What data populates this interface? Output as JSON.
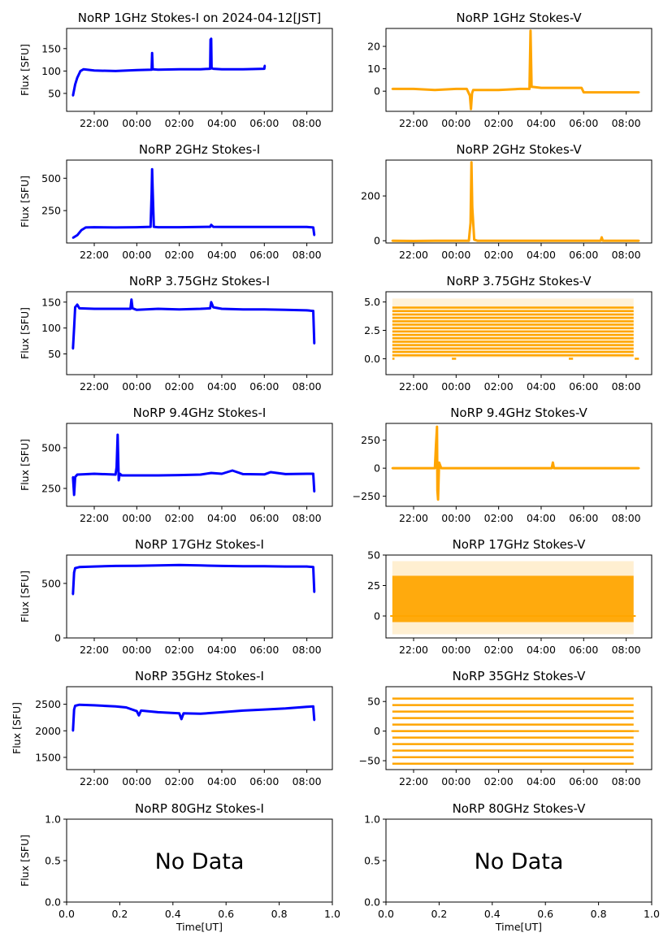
{
  "figure": {
    "xlabel": "Time[UT]",
    "ylabel": "Flux [SFU]",
    "nodata_text": "No Data"
  },
  "colors": {
    "stokes_i": "#0000ff",
    "stokes_v": "#ffa500",
    "frame": "#000000"
  },
  "chart_data": [
    {
      "id": "p1i",
      "type": "line",
      "title": "NoRP 1GHz Stokes-I on 2024-04-12[JST]",
      "ylabel": "Flux [SFU]",
      "xlabel": "",
      "color": "#0000ff",
      "xlim": [
        20.7,
        33.2
      ],
      "ylim": [
        10,
        195
      ],
      "yticks": [
        50,
        100,
        150
      ],
      "xtick_labels": [
        "22:00",
        "00:00",
        "02:00",
        "04:00",
        "06:00",
        "08:00"
      ],
      "xticks": [
        22,
        24,
        26,
        28,
        30,
        32
      ],
      "series": [
        {
          "name": "Stokes-I",
          "x": [
            21.0,
            21.1,
            21.2,
            21.35,
            21.5,
            22.0,
            23.0,
            24.0,
            24.7,
            24.72,
            24.75,
            25.0,
            26.0,
            27.0,
            27.45,
            27.47,
            27.5,
            27.52,
            27.6,
            28.0,
            29.0,
            30.0,
            30.02
          ],
          "y": [
            45,
            70,
            85,
            100,
            104,
            101,
            100,
            102,
            103,
            140,
            104,
            103,
            104,
            104,
            105,
            170,
            172,
            106,
            105,
            104,
            104,
            105,
            112
          ]
        }
      ]
    },
    {
      "id": "p1v",
      "type": "line",
      "title": "NoRP 1GHz Stokes-V",
      "ylabel": "",
      "xlabel": "",
      "color": "#ffa500",
      "xlim": [
        20.7,
        33.2
      ],
      "ylim": [
        -9,
        28
      ],
      "yticks": [
        0,
        10,
        20
      ],
      "xtick_labels": [
        "22:00",
        "00:00",
        "02:00",
        "04:00",
        "06:00",
        "08:00"
      ],
      "xticks": [
        22,
        24,
        26,
        28,
        30,
        32
      ],
      "series": [
        {
          "name": "Stokes-V",
          "x": [
            21.0,
            22.0,
            23.0,
            24.0,
            24.5,
            24.65,
            24.7,
            24.75,
            24.8,
            25.5,
            26.0,
            27.0,
            27.45,
            27.5,
            27.55,
            28.0,
            29.0,
            29.9,
            30.0,
            31.0,
            32.0,
            32.6
          ],
          "y": [
            1,
            1,
            0.5,
            1,
            1,
            -2,
            -8,
            -1,
            0.5,
            0.5,
            0.5,
            1,
            1,
            27,
            2,
            1.5,
            1.5,
            1.5,
            -0.5,
            -0.5,
            -0.5,
            -0.5
          ]
        }
      ]
    },
    {
      "id": "p2i",
      "type": "line",
      "title": "NoRP 2GHz Stokes-I",
      "ylabel": "Flux [SFU]",
      "xlabel": "",
      "color": "#0000ff",
      "xlim": [
        20.7,
        33.2
      ],
      "ylim": [
        0,
        640
      ],
      "yticks": [
        250,
        500
      ],
      "xtick_labels": [
        "22:00",
        "00:00",
        "02:00",
        "04:00",
        "06:00",
        "08:00"
      ],
      "xticks": [
        22,
        24,
        26,
        28,
        30,
        32
      ],
      "series": [
        {
          "name": "Stokes-I",
          "x": [
            21.0,
            21.2,
            21.4,
            21.6,
            22.0,
            23.0,
            24.0,
            24.65,
            24.7,
            24.72,
            24.75,
            24.8,
            25.0,
            26.0,
            27.0,
            27.45,
            27.5,
            27.6,
            28.0,
            29.0,
            30.0,
            31.0,
            32.0,
            32.3,
            32.35
          ],
          "y": [
            40,
            60,
            100,
            120,
            122,
            120,
            122,
            125,
            380,
            570,
            410,
            125,
            122,
            122,
            124,
            125,
            140,
            125,
            124,
            124,
            124,
            124,
            124,
            120,
            60
          ]
        }
      ]
    },
    {
      "id": "p2v",
      "type": "line",
      "title": "NoRP 2GHz Stokes-V",
      "ylabel": "",
      "xlabel": "",
      "color": "#ffa500",
      "xlim": [
        20.7,
        33.2
      ],
      "ylim": [
        -10,
        360
      ],
      "yticks": [
        0,
        200
      ],
      "xtick_labels": [
        "22:00",
        "00:00",
        "02:00",
        "04:00",
        "06:00",
        "08:00"
      ],
      "xticks": [
        22,
        24,
        26,
        28,
        30,
        32
      ],
      "series": [
        {
          "name": "Stokes-V",
          "x": [
            21.0,
            22.0,
            23.0,
            24.0,
            24.6,
            24.68,
            24.72,
            24.76,
            24.85,
            25.0,
            26.0,
            27.0,
            28.0,
            29.0,
            30.0,
            30.8,
            30.85,
            30.9,
            31.5,
            32.0,
            32.6
          ],
          "y": [
            0,
            -1,
            0,
            0,
            0,
            80,
            350,
            150,
            5,
            0,
            0,
            0,
            0,
            0,
            0,
            0,
            15,
            0,
            0,
            0,
            0
          ]
        }
      ]
    },
    {
      "id": "p3i",
      "type": "line",
      "title": "NoRP 3.75GHz Stokes-I",
      "ylabel": "Flux [SFU]",
      "xlabel": "",
      "color": "#0000ff",
      "xlim": [
        20.7,
        33.2
      ],
      "ylim": [
        10,
        170
      ],
      "yticks": [
        50,
        100,
        150
      ],
      "xtick_labels": [
        "22:00",
        "00:00",
        "02:00",
        "04:00",
        "06:00",
        "08:00"
      ],
      "xticks": [
        22,
        24,
        26,
        28,
        30,
        32
      ],
      "series": [
        {
          "name": "Stokes-I",
          "x": [
            21.0,
            21.05,
            21.1,
            21.2,
            21.3,
            22.0,
            23.0,
            23.7,
            23.75,
            23.8,
            24.0,
            25.0,
            26.0,
            27.0,
            27.45,
            27.5,
            27.6,
            28.0,
            29.0,
            30.0,
            31.0,
            32.0,
            32.3,
            32.35
          ],
          "y": [
            60,
            100,
            140,
            145,
            138,
            137,
            137,
            137,
            155,
            138,
            135,
            137,
            136,
            137,
            138,
            150,
            140,
            137,
            136,
            136,
            135,
            134,
            133,
            70
          ]
        }
      ]
    },
    {
      "id": "p3v",
      "type": "scatter",
      "title": "NoRP 3.75GHz Stokes-V",
      "ylabel": "",
      "xlabel": "",
      "color": "#ffa500",
      "xlim": [
        20.7,
        33.2
      ],
      "ylim": [
        -1.4,
        5.9
      ],
      "yticks": [
        0.0,
        2.5,
        5.0
      ],
      "ytick_labels": [
        "0.0",
        "2.5",
        "5.0"
      ],
      "xtick_labels": [
        "22:00",
        "00:00",
        "02:00",
        "04:00",
        "06:00",
        "08:00"
      ],
      "xticks": [
        22,
        24,
        26,
        28,
        30,
        32
      ],
      "levels": [
        0.3,
        0.6,
        0.9,
        1.2,
        1.5,
        1.8,
        2.1,
        2.4,
        2.7,
        3.0,
        3.3,
        3.6,
        3.9,
        4.2,
        4.5
      ],
      "x_range": [
        21.0,
        32.35
      ],
      "series": [
        {
          "name": "Stokes-V",
          "x": [
            21.0,
            32.35
          ],
          "y": [
            0.0,
            4.5
          ]
        }
      ]
    },
    {
      "id": "p4i",
      "type": "line",
      "title": "NoRP 9.4GHz Stokes-I",
      "ylabel": "Flux [SFU]",
      "xlabel": "",
      "color": "#0000ff",
      "xlim": [
        20.7,
        33.2
      ],
      "ylim": [
        140,
        650
      ],
      "yticks": [
        250,
        500
      ],
      "xtick_labels": [
        "22:00",
        "00:00",
        "02:00",
        "04:00",
        "06:00",
        "08:00"
      ],
      "xticks": [
        22,
        24,
        26,
        28,
        30,
        32
      ],
      "series": [
        {
          "name": "Stokes-I",
          "x": [
            21.0,
            21.05,
            21.1,
            21.2,
            22.0,
            23.0,
            23.05,
            23.1,
            23.15,
            23.2,
            23.3,
            24.0,
            25.0,
            26.0,
            27.0,
            27.5,
            28.0,
            28.5,
            29.0,
            30.0,
            30.3,
            31.0,
            32.0,
            32.3,
            32.35
          ],
          "y": [
            320,
            210,
            320,
            335,
            340,
            335,
            380,
            580,
            300,
            340,
            330,
            330,
            330,
            332,
            335,
            345,
            340,
            360,
            338,
            336,
            350,
            338,
            340,
            340,
            230
          ]
        }
      ]
    },
    {
      "id": "p4v",
      "type": "line",
      "title": "NoRP 9.4GHz Stokes-V",
      "ylabel": "",
      "xlabel": "",
      "color": "#ffa500",
      "xlim": [
        20.7,
        33.2
      ],
      "ylim": [
        -340,
        400
      ],
      "yticks": [
        -250,
        0,
        250
      ],
      "ytick_labels": [
        "−250",
        "0",
        "250"
      ],
      "xtick_labels": [
        "22:00",
        "00:00",
        "02:00",
        "04:00",
        "06:00",
        "08:00"
      ],
      "xticks": [
        22,
        24,
        26,
        28,
        30,
        32
      ],
      "series": [
        {
          "name": "Stokes-V",
          "x": [
            21.0,
            22.0,
            23.0,
            23.05,
            23.1,
            23.12,
            23.15,
            23.2,
            23.3,
            24.0,
            25.0,
            26.0,
            27.0,
            28.0,
            28.5,
            28.55,
            28.6,
            29.0,
            30.0,
            31.0,
            32.0,
            32.6
          ],
          "y": [
            0,
            0,
            0,
            200,
            370,
            -200,
            -280,
            50,
            0,
            0,
            0,
            0,
            0,
            0,
            0,
            50,
            0,
            0,
            0,
            0,
            0,
            0
          ]
        }
      ]
    },
    {
      "id": "p5i",
      "type": "line",
      "title": "NoRP 17GHz Stokes-I",
      "ylabel": "Flux [SFU]",
      "xlabel": "",
      "color": "#0000ff",
      "xlim": [
        20.7,
        33.2
      ],
      "ylim": [
        0,
        760
      ],
      "yticks": [
        0,
        500
      ],
      "xtick_labels": [
        "22:00",
        "00:00",
        "02:00",
        "04:00",
        "06:00",
        "08:00"
      ],
      "xticks": [
        22,
        24,
        26,
        28,
        30,
        32
      ],
      "series": [
        {
          "name": "Stokes-I",
          "x": [
            21.0,
            21.05,
            21.1,
            21.3,
            22.0,
            23.0,
            24.0,
            25.0,
            26.0,
            27.0,
            28.0,
            29.0,
            30.0,
            31.0,
            32.0,
            32.3,
            32.35
          ],
          "y": [
            400,
            600,
            640,
            650,
            655,
            660,
            662,
            665,
            668,
            665,
            660,
            658,
            658,
            655,
            655,
            650,
            420
          ]
        }
      ]
    },
    {
      "id": "p5v",
      "type": "scatter",
      "title": "NoRP 17GHz Stokes-V",
      "ylabel": "",
      "xlabel": "",
      "color": "#ffa500",
      "xlim": [
        20.7,
        33.2
      ],
      "ylim": [
        -18,
        50
      ],
      "yticks": [
        0,
        25,
        50
      ],
      "xtick_labels": [
        "22:00",
        "00:00",
        "02:00",
        "04:00",
        "06:00",
        "08:00"
      ],
      "xticks": [
        22,
        24,
        26,
        28,
        30,
        32
      ],
      "band": [
        -5,
        33
      ],
      "series": [
        {
          "name": "Stokes-V",
          "x": [
            21.0,
            32.35
          ],
          "y": [
            -5,
            33
          ]
        }
      ]
    },
    {
      "id": "p6i",
      "type": "line",
      "title": "NoRP 35GHz Stokes-I",
      "ylabel": "Flux [SFU]",
      "xlabel": "",
      "color": "#0000ff",
      "xlim": [
        20.7,
        33.2
      ],
      "ylim": [
        1270,
        2830
      ],
      "yticks": [
        1500,
        2000,
        2500
      ],
      "xtick_labels": [
        "22:00",
        "00:00",
        "02:00",
        "04:00",
        "06:00",
        "08:00"
      ],
      "xticks": [
        22,
        24,
        26,
        28,
        30,
        32
      ],
      "series": [
        {
          "name": "Stokes-I",
          "x": [
            21.0,
            21.05,
            21.1,
            21.3,
            22.0,
            23.0,
            23.5,
            24.0,
            24.1,
            24.2,
            25.0,
            26.0,
            26.1,
            26.2,
            27.0,
            28.0,
            29.0,
            30.0,
            31.0,
            32.0,
            32.3,
            32.35
          ],
          "y": [
            2000,
            2400,
            2470,
            2490,
            2480,
            2460,
            2440,
            2370,
            2290,
            2380,
            2350,
            2330,
            2220,
            2330,
            2320,
            2350,
            2380,
            2400,
            2420,
            2450,
            2460,
            2200
          ]
        }
      ]
    },
    {
      "id": "p6v",
      "type": "scatter",
      "title": "NoRP 35GHz Stokes-V",
      "ylabel": "",
      "xlabel": "",
      "color": "#ffa500",
      "xlim": [
        20.7,
        33.2
      ],
      "ylim": [
        -65,
        75
      ],
      "yticks": [
        -50,
        0,
        50
      ],
      "ytick_labels": [
        "−50",
        "0",
        "50"
      ],
      "xtick_labels": [
        "22:00",
        "00:00",
        "02:00",
        "04:00",
        "06:00",
        "08:00"
      ],
      "xticks": [
        22,
        24,
        26,
        28,
        30,
        32
      ],
      "levels": [
        -55,
        -44,
        -33,
        -22,
        -11,
        0,
        11,
        22,
        33,
        44,
        55
      ],
      "x_range": [
        21.0,
        32.35
      ],
      "series": [
        {
          "name": "Stokes-V",
          "x": [
            21.0,
            32.35
          ],
          "y": [
            -55,
            55
          ]
        }
      ]
    },
    {
      "id": "p7i",
      "type": "line",
      "title": "NoRP 80GHz Stokes-I",
      "ylabel": "Flux [SFU]",
      "xlabel": "Time[UT]",
      "color": "#0000ff",
      "xlim": [
        0,
        1
      ],
      "ylim": [
        0,
        1
      ],
      "yticks": [
        0,
        0.5,
        1
      ],
      "ytick_labels": [
        "0.0",
        "0.5",
        "1.0"
      ],
      "xticks": [
        0,
        0.2,
        0.4,
        0.6,
        0.8,
        1.0
      ],
      "xtick_labels": [
        "0.0",
        "0.2",
        "0.4",
        "0.6",
        "0.8",
        "1.0"
      ],
      "annotation": "No Data",
      "series": []
    },
    {
      "id": "p7v",
      "type": "line",
      "title": "NoRP 80GHz Stokes-V",
      "ylabel": "",
      "xlabel": "Time[UT]",
      "color": "#ffa500",
      "xlim": [
        0,
        1
      ],
      "ylim": [
        0,
        1
      ],
      "yticks": [
        0,
        0.5,
        1
      ],
      "ytick_labels": [
        "0.0",
        "0.5",
        "1.0"
      ],
      "xticks": [
        0,
        0.2,
        0.4,
        0.6,
        0.8,
        1.0
      ],
      "xtick_labels": [
        "0.0",
        "0.2",
        "0.4",
        "0.6",
        "0.8",
        "1.0"
      ],
      "annotation": "No Data",
      "series": []
    }
  ]
}
